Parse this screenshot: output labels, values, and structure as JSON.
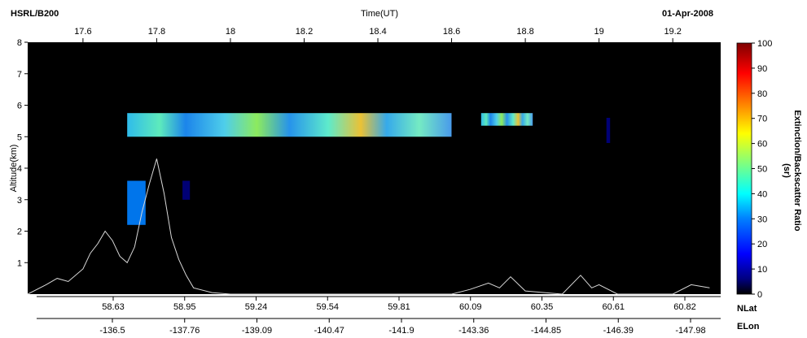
{
  "header": {
    "left_label": "HSRL/B200",
    "center_label": "Time(UT)",
    "right_label": "01-Apr-2008"
  },
  "chart_data": {
    "type": "heatmap",
    "title": "",
    "instrument": "HSRL/B200",
    "date": "01-Apr-2008",
    "xlabel": "Time(UT)",
    "ylabel": "Altitude(km)",
    "xlim": [
      17.45,
      19.33
    ],
    "ylim": [
      0,
      8
    ],
    "grid": false,
    "time_ticks": [
      17.6,
      17.8,
      18,
      18.2,
      18.4,
      18.6,
      18.8,
      19,
      19.2
    ],
    "time_tick_labels": [
      "17.6",
      "17.8",
      "18",
      "18.2",
      "18.4",
      "18.6",
      "18.8",
      "19",
      "19.2"
    ],
    "altitude_ticks": [
      1,
      2,
      3,
      4,
      5,
      6,
      7,
      8
    ],
    "altitude_tick_labels": [
      "1",
      "2",
      "3",
      "4",
      "5",
      "6",
      "7",
      "8"
    ],
    "nlat_label": "NLat",
    "nlat_tick_labels": [
      "58.63",
      "58.95",
      "59.24",
      "59.54",
      "59.81",
      "60.09",
      "60.35",
      "60.61",
      "60.82"
    ],
    "elon_label": "ELon",
    "elon_tick_labels": [
      "-136.5",
      "-137.76",
      "-139.09",
      "-140.47",
      "-141.9",
      "-143.36",
      "-144.85",
      "-146.39",
      "-147.98"
    ],
    "colorbar": {
      "label": "Extinction/Backscatter Ratio",
      "units": "(sr)",
      "range": [
        0,
        100
      ],
      "tick_values": [
        0,
        10,
        20,
        30,
        40,
        50,
        60,
        70,
        80,
        90,
        100
      ],
      "tick_labels": [
        "0",
        "10",
        "20",
        "30",
        "40",
        "50",
        "60",
        "70",
        "80",
        "90",
        "100"
      ],
      "colormap": [
        "#000000",
        "#00007f",
        "#0000ff",
        "#007fff",
        "#00ffff",
        "#7fff7f",
        "#ffff00",
        "#ff7f00",
        "#ff0000",
        "#7f0000"
      ]
    },
    "layers": [
      {
        "time_start": 17.72,
        "time_end": 18.6,
        "alt_bottom": 5.0,
        "alt_top": 5.75,
        "typical_ratio": 30
      },
      {
        "time_start": 18.68,
        "time_end": 18.82,
        "alt_bottom": 5.35,
        "alt_top": 5.75,
        "typical_ratio": 40
      },
      {
        "time_start": 17.72,
        "time_end": 17.77,
        "alt_bottom": 2.2,
        "alt_top": 3.6,
        "typical_ratio": 35
      },
      {
        "time_start": 17.87,
        "time_end": 17.89,
        "alt_bottom": 3.0,
        "alt_top": 3.6,
        "typical_ratio": 10
      },
      {
        "time_start": 19.02,
        "time_end": 19.03,
        "alt_bottom": 4.8,
        "alt_top": 5.6,
        "typical_ratio": 8
      }
    ],
    "terrain_profile": {
      "time": [
        17.45,
        17.5,
        17.53,
        17.56,
        17.6,
        17.62,
        17.64,
        17.66,
        17.68,
        17.7,
        17.72,
        17.74,
        17.76,
        17.78,
        17.8,
        17.82,
        17.84,
        17.86,
        17.88,
        17.9,
        17.95,
        18.0,
        18.6,
        18.65,
        18.7,
        18.73,
        18.76,
        18.8,
        18.9,
        18.95,
        18.98,
        19.0,
        19.05,
        19.2,
        19.25,
        19.3
      ],
      "altitude_km": [
        0,
        0.3,
        0.5,
        0.4,
        0.8,
        1.3,
        1.6,
        2.0,
        1.7,
        1.2,
        1.0,
        1.5,
        2.6,
        3.5,
        4.3,
        3.2,
        1.8,
        1.1,
        0.6,
        0.2,
        0.05,
        0,
        0,
        0.15,
        0.35,
        0.2,
        0.55,
        0.1,
        0,
        0.6,
        0.2,
        0.3,
        0,
        0,
        0.3,
        0.2
      ]
    }
  }
}
